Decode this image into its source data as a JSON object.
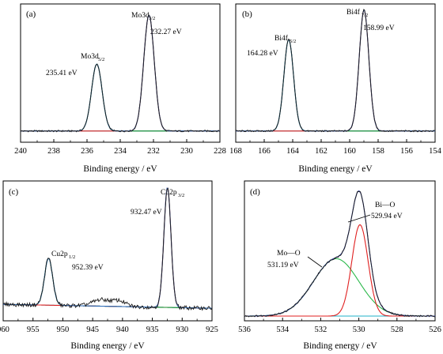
{
  "figure": {
    "panels": [
      {
        "tag": "(a)",
        "xlabel": "Binding energy / eV"
      },
      {
        "tag": "(b)",
        "xlabel": "Binding energy / eV"
      },
      {
        "tag": "(c)",
        "xlabel": "Binding energy / eV"
      },
      {
        "tag": "(d)",
        "xlabel": "Binding energy / eV"
      }
    ]
  },
  "chart_data": [
    {
      "type": "line",
      "panel": "(a)",
      "title": "",
      "xlabel": "Binding energy / eV",
      "ylabel": "",
      "xlim": [
        240,
        228
      ],
      "x_reversed": true,
      "xticks": [
        240,
        238,
        236,
        234,
        232,
        230,
        228
      ],
      "grid": false,
      "peaks": [
        {
          "center": 235.41,
          "label": "235.41 eV",
          "orbital": "Mo3d",
          "sub": "5/2",
          "height": 0.52,
          "fwhm": 0.75,
          "color": "#1a8a2a"
        },
        {
          "center": 232.27,
          "label": "232.27 eV",
          "orbital": "Mo3d",
          "sub": "3/2",
          "height": 0.9,
          "fwhm": 0.75,
          "color": "#e02020"
        }
      ],
      "background_level": 0.05,
      "colors": {
        "raw": "#1a1a1a",
        "envelope": "#2a6ab8",
        "background": "#20b0c8"
      }
    },
    {
      "type": "line",
      "panel": "(b)",
      "title": "",
      "xlabel": "Binding energy / eV",
      "ylabel": "",
      "xlim": [
        168,
        154
      ],
      "x_reversed": true,
      "xticks": [
        168,
        166,
        164,
        162,
        160,
        158,
        156,
        154
      ],
      "grid": false,
      "peaks": [
        {
          "center": 164.28,
          "label": "164.28 eV",
          "orbital": "Bi4f",
          "sub": "5/2",
          "height": 0.71,
          "fwhm": 0.8,
          "color": "#1a8a2a"
        },
        {
          "center": 158.99,
          "label": "158.99 eV",
          "orbital": "Bi4f",
          "sub": "7/2",
          "height": 0.94,
          "fwhm": 0.8,
          "color": "#e02020"
        }
      ],
      "background_level": 0.05,
      "colors": {
        "raw": "#1a1a1a",
        "envelope": "#2a6ab8",
        "background": "#20b0c8"
      }
    },
    {
      "type": "line",
      "panel": "(c)",
      "title": "",
      "xlabel": "Binding energy / eV",
      "ylabel": "",
      "xlim": [
        960,
        925
      ],
      "x_reversed": true,
      "xticks": [
        960,
        955,
        950,
        945,
        940,
        935,
        930,
        925
      ],
      "grid": false,
      "peaks": [
        {
          "center": 952.39,
          "label": "952.39 eV",
          "orbital": "Cu2p",
          "sub": "1/2",
          "height": 0.36,
          "fwhm": 1.6,
          "color": "#1a8a2a"
        },
        {
          "center": 932.47,
          "label": "932.47 eV",
          "orbital": "Cu2p",
          "sub": "3/2",
          "height": 0.92,
          "fwhm": 1.4,
          "color": "#e02020"
        }
      ],
      "background_level": 0.06,
      "colors": {
        "raw": "#1a1a1a",
        "envelope": "#2a6ab8",
        "background": "#20b0c8"
      }
    },
    {
      "type": "line",
      "panel": "(d)",
      "title": "",
      "xlabel": "Binding energy / eV",
      "ylabel": "",
      "xlim": [
        536,
        526
      ],
      "x_reversed": true,
      "xticks": [
        536,
        534,
        532,
        530,
        528,
        526
      ],
      "grid": false,
      "peaks": [
        {
          "center": 531.19,
          "label": "531.19 eV",
          "orbital": "Mo—O",
          "sub": "",
          "height": 0.44,
          "fwhm": 2.8,
          "color": "#2ab84a"
        },
        {
          "center": 529.94,
          "label": "529.94 eV",
          "orbital": "Bi—O",
          "sub": "",
          "height": 0.7,
          "fwhm": 1.0,
          "color": "#e02020"
        }
      ],
      "background_level": 0.0,
      "colors": {
        "raw": "#1a1a1a",
        "envelope": "#2a3a9a",
        "background": "#20b0c8"
      }
    }
  ]
}
